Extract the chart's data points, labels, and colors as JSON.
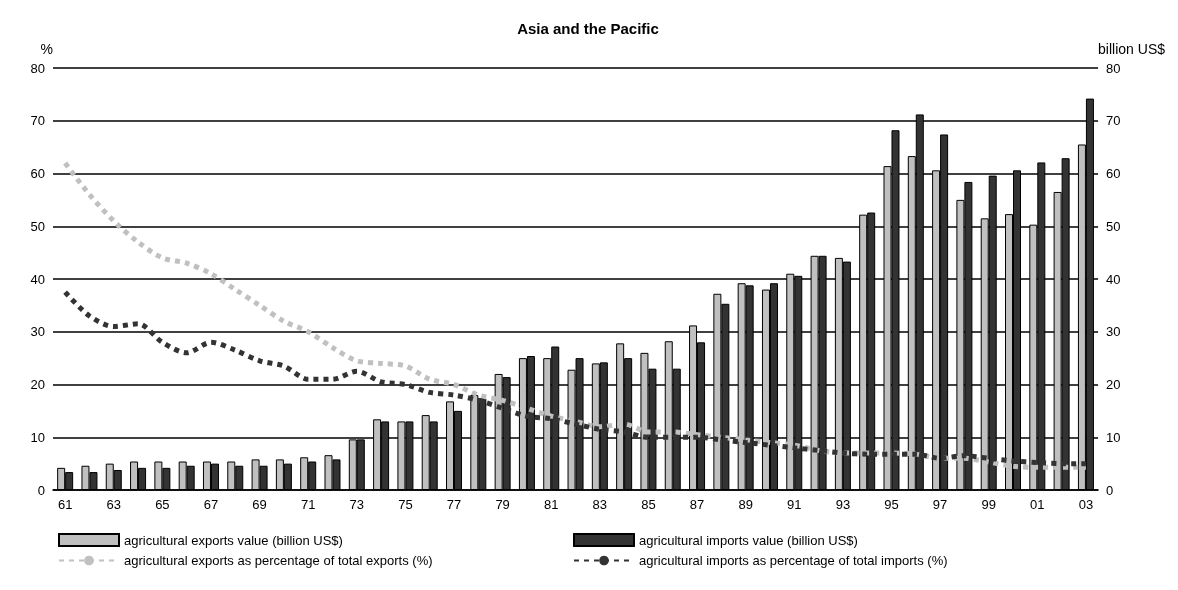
{
  "chart_data": {
    "type": "bar",
    "title": "Asia and the Pacific",
    "ylabel": "%",
    "y2label": "billion US$",
    "categories": [
      "61",
      null,
      "63",
      null,
      "65",
      null,
      "67",
      null,
      "69",
      null,
      "71",
      null,
      "73",
      null,
      "75",
      null,
      "77",
      null,
      "79",
      null,
      "81",
      null,
      "83",
      null,
      "85",
      null,
      "87",
      null,
      "89",
      null,
      "91",
      null,
      "93",
      null,
      "95",
      null,
      "97",
      null,
      "99",
      null,
      "01",
      null,
      "03"
    ],
    "ylim": [
      0,
      80
    ],
    "yticks": [
      0,
      10,
      20,
      30,
      40,
      50,
      60,
      70,
      80
    ],
    "y2lim": [
      0,
      80
    ],
    "y2ticks": [
      0,
      10,
      20,
      30,
      40,
      50,
      60,
      70,
      80
    ],
    "grid": "y",
    "legend": "bottom",
    "series": [
      {
        "name": "agricultural exports value (billion US$)",
        "color": "#c0c0c0",
        "values": [
          4.2,
          4.6,
          5,
          5.4,
          5.4,
          5.4,
          5.4,
          5.4,
          5.8,
          5.8,
          6.2,
          6.6,
          9.6,
          13.4,
          13,
          14.2,
          16.8,
          18,
          22,
          25,
          25,
          22.8,
          24,
          27.8,
          26,
          28.2,
          31.2,
          37.2,
          39.2,
          38,
          41,
          44.4,
          44,
          52.2,
          61.4,
          63.3,
          60.6,
          55,
          51.5,
          52.3,
          50.3,
          56.5,
          65.5
        ]
      },
      {
        "name": "agricultural imports value (billion US$)",
        "color": "#333333",
        "values": [
          3.4,
          3.4,
          3.8,
          4.2,
          4.2,
          4.6,
          5,
          4.6,
          4.6,
          5,
          5.4,
          5.8,
          9.6,
          13,
          13,
          13,
          15,
          17.4,
          21.4,
          25.4,
          27.2,
          25,
          24.2,
          25,
          23,
          23,
          28,
          35.3,
          38.8,
          39.2,
          40.6,
          44.4,
          43.3,
          52.6,
          68.2,
          71.2,
          67.4,
          58.4,
          59.6,
          60.6,
          62.1,
          62.9,
          74.2
        ]
      },
      {
        "name": "agricultural exports as percentage of total exports (%)",
        "type": "line",
        "color": "#c0c0c0",
        "line_style": "dashed",
        "marker": "none",
        "values": [
          62,
          56,
          51,
          47,
          44,
          43,
          41,
          38,
          35,
          32,
          30,
          27,
          24.5,
          24,
          23.5,
          21,
          20,
          18,
          17,
          15.5,
          14,
          13,
          12,
          12.5,
          11,
          11,
          10.5,
          10,
          9.5,
          9,
          8.5,
          7.5,
          7,
          7,
          7,
          6.8,
          6,
          6,
          5.3,
          4.5,
          4.3,
          4.3,
          4.3
        ]
      },
      {
        "name": "agricultural imports as percentage of total imports (%)",
        "type": "line",
        "color": "#333333",
        "line_style": "dashed",
        "marker": "none",
        "values": [
          37.5,
          33,
          31,
          31.5,
          28,
          26,
          28,
          26.5,
          24.5,
          23.5,
          21,
          21,
          22.5,
          20.5,
          20,
          18.5,
          18,
          17,
          15.5,
          14,
          13.5,
          12.5,
          11.5,
          11,
          10,
          10,
          10,
          9.5,
          9,
          8.5,
          8,
          7.5,
          7,
          6.8,
          6.8,
          6.8,
          6,
          6.5,
          6,
          5.5,
          5.2,
          5,
          5
        ]
      }
    ]
  }
}
